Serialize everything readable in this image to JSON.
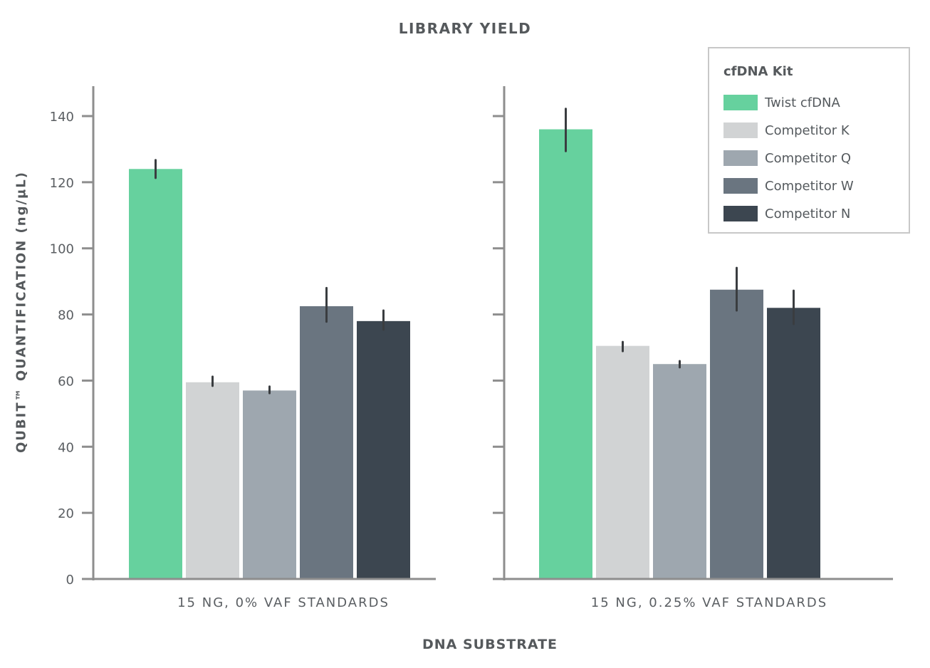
{
  "chart_data": {
    "type": "bar",
    "title": "LIBRARY YIELD",
    "xlabel": "DNA SUBSTRATE",
    "ylabel": "QUBIT™ QUANTIFICATION (ng/µL)",
    "ylim": [
      0,
      150
    ],
    "yticks": [
      0,
      20,
      40,
      60,
      80,
      100,
      120,
      140
    ],
    "grid": false,
    "legend_position": "upper right",
    "legend_title": "cfDNA Kit",
    "categories": [
      "15 NG, 0% VAF STANDARDS",
      "15 NG, 0.25% VAF STANDARDS"
    ],
    "series": [
      {
        "name": "Twist cfDNA",
        "color": "#66d19e",
        "values": [
          124,
          136
        ],
        "error_low": [
          121.3,
          129.4
        ],
        "error_high": [
          126.7,
          142.2
        ]
      },
      {
        "name": "Competitor K",
        "color": "#d1d3d4",
        "values": [
          59.5,
          70.5
        ],
        "error_low": [
          58.4,
          68.9
        ],
        "error_high": [
          61.2,
          71.7
        ]
      },
      {
        "name": "Competitor Q",
        "color": "#9ea7af",
        "values": [
          57,
          65
        ],
        "error_low": [
          56.2,
          64.0
        ],
        "error_high": [
          58.2,
          65.9
        ]
      },
      {
        "name": "Competitor W",
        "color": "#6a7580",
        "values": [
          82.5,
          87.5
        ],
        "error_low": [
          77.8,
          81.2
        ],
        "error_high": [
          88.0,
          94.1
        ]
      },
      {
        "name": "Competitor N",
        "color": "#3c4650",
        "values": [
          78,
          82
        ],
        "error_low": [
          75.4,
          77.1
        ],
        "error_high": [
          81.2,
          87.2
        ]
      }
    ]
  }
}
